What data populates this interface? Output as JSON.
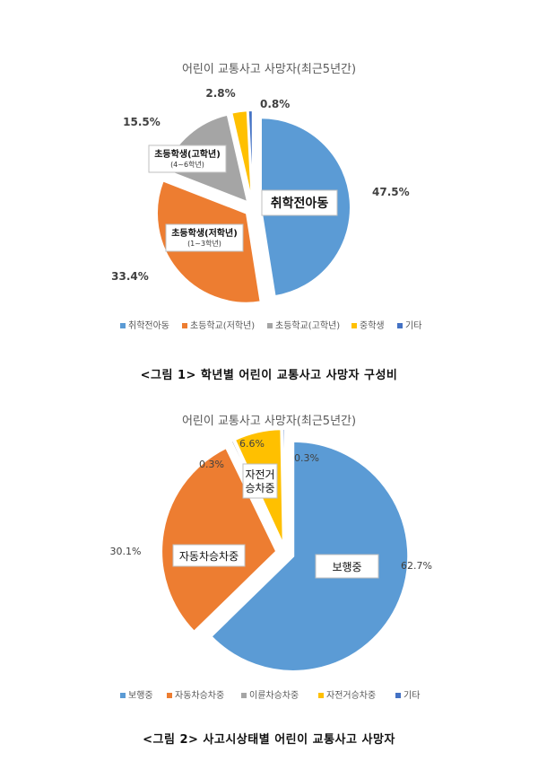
{
  "chart_data": [
    {
      "type": "pie",
      "title": "어린이 교통사고 사망자(최근5년간)",
      "slices": [
        {
          "name": "취학전아동",
          "value": 47.5,
          "value_label": "47.5%",
          "color": "#5B9BD5",
          "callout": "취학전아동"
        },
        {
          "name": "초등학교(저학년)",
          "value": 33.4,
          "value_label": "33.4%",
          "color": "#ED7D31",
          "callout": "초등학생(저학년)",
          "callout_sub": "(1~3학년)"
        },
        {
          "name": "초등학교(고학년)",
          "value": 15.5,
          "value_label": "15.5%",
          "color": "#A5A5A5",
          "callout": "초등학생(고학년)",
          "callout_sub": "(4~6학년)"
        },
        {
          "name": "중학생",
          "value": 2.8,
          "value_label": "2.8%",
          "color": "#FFC000"
        },
        {
          "name": "기타",
          "value": 0.8,
          "value_label": "0.8%",
          "color": "#4472C4"
        }
      ],
      "legend_position": "bottom",
      "caption": "<그림 1> 학년별 어린이 교통사고 사망자 구성비"
    },
    {
      "type": "pie",
      "title": "어린이 교통사고 사망자(최근5년간)",
      "slices": [
        {
          "name": "보행중",
          "value": 62.7,
          "value_label": "62.7%",
          "color": "#5B9BD5",
          "callout": "보행중"
        },
        {
          "name": "자동차승차중",
          "value": 30.1,
          "value_label": "30.1%",
          "color": "#ED7D31",
          "callout": "자동차승차중"
        },
        {
          "name": "이륜차승차중",
          "value": 0.3,
          "value_label": "0.3%",
          "color": "#A5A5A5"
        },
        {
          "name": "자전거승차중",
          "value": 6.6,
          "value_label": "6.6%",
          "color": "#FFC000",
          "callout": "자전거",
          "callout_line2": "승차중"
        },
        {
          "name": "기타",
          "value": 0.3,
          "value_label": "0.3%",
          "color": "#4472C4"
        }
      ],
      "legend_position": "bottom",
      "caption": "<그림 2> 사고시상태별 어린이 교통사고 사망자"
    }
  ]
}
